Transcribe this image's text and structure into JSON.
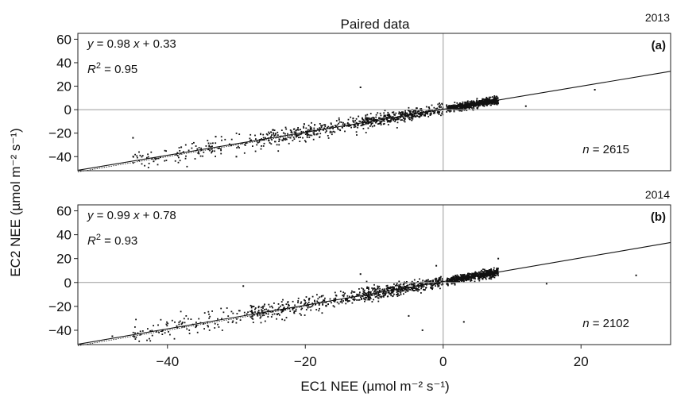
{
  "chart_data": {
    "type": "scatter",
    "title": "Paired data",
    "xlabel": "EC1 NEE (µmol m⁻² s⁻¹)",
    "ylabel": "EC2 NEE (µmol m⁻² s⁻¹)",
    "xlim": [
      -53,
      33
    ],
    "x_ticks": [
      -40,
      -20,
      0,
      20
    ],
    "x_tick_labels": [
      "−40",
      "−20",
      "0",
      "20"
    ],
    "grid": false,
    "panels": [
      {
        "tag": "(a)",
        "year": "2013",
        "ylim": [
          -52,
          65
        ],
        "y_ticks": [
          -40,
          -20,
          0,
          20,
          40,
          60
        ],
        "y_tick_labels": [
          "−40",
          "−20",
          "0",
          "20",
          "40",
          "60"
        ],
        "fit": {
          "slope": 0.98,
          "intercept": 0.33
        },
        "equation": {
          "y": "y",
          "eq": " = 0.98 ",
          "x": "x",
          "rest": " + 0.33"
        },
        "r2": {
          "r": "R",
          "sup": "2",
          "rest": " = 0.95"
        },
        "n": {
          "label": "n",
          "rest": " = 2615"
        },
        "outliers": [
          [
            -12,
            19
          ],
          [
            22,
            17
          ],
          [
            12,
            3
          ],
          [
            -33,
            -23
          ],
          [
            -38,
            -32
          ],
          [
            -45,
            -24
          ],
          [
            -42,
            -44
          ],
          [
            -30,
            -40
          ]
        ]
      },
      {
        "tag": "(b)",
        "year": "2014",
        "ylim": [
          -52,
          65
        ],
        "y_ticks": [
          -40,
          -20,
          0,
          20,
          40,
          60
        ],
        "y_tick_labels": [
          "−40",
          "−20",
          "0",
          "20",
          "40",
          "60"
        ],
        "fit": {
          "slope": 0.99,
          "intercept": 0.78
        },
        "equation": {
          "y": "y",
          "eq": " = 0.99 ",
          "x": "x",
          "rest": " + 0.78"
        },
        "r2": {
          "r": "R",
          "sup": "2",
          "rest": " = 0.93"
        },
        "n": {
          "label": "n",
          "rest": " = 2102"
        },
        "outliers": [
          [
            28,
            6
          ],
          [
            -29,
            -3
          ],
          [
            -12,
            7
          ],
          [
            -3,
            -40
          ],
          [
            3,
            -33
          ],
          [
            8,
            20
          ],
          [
            15,
            -1
          ],
          [
            -48,
            -45
          ],
          [
            -1,
            14
          ],
          [
            -5,
            -28
          ]
        ]
      }
    ]
  }
}
